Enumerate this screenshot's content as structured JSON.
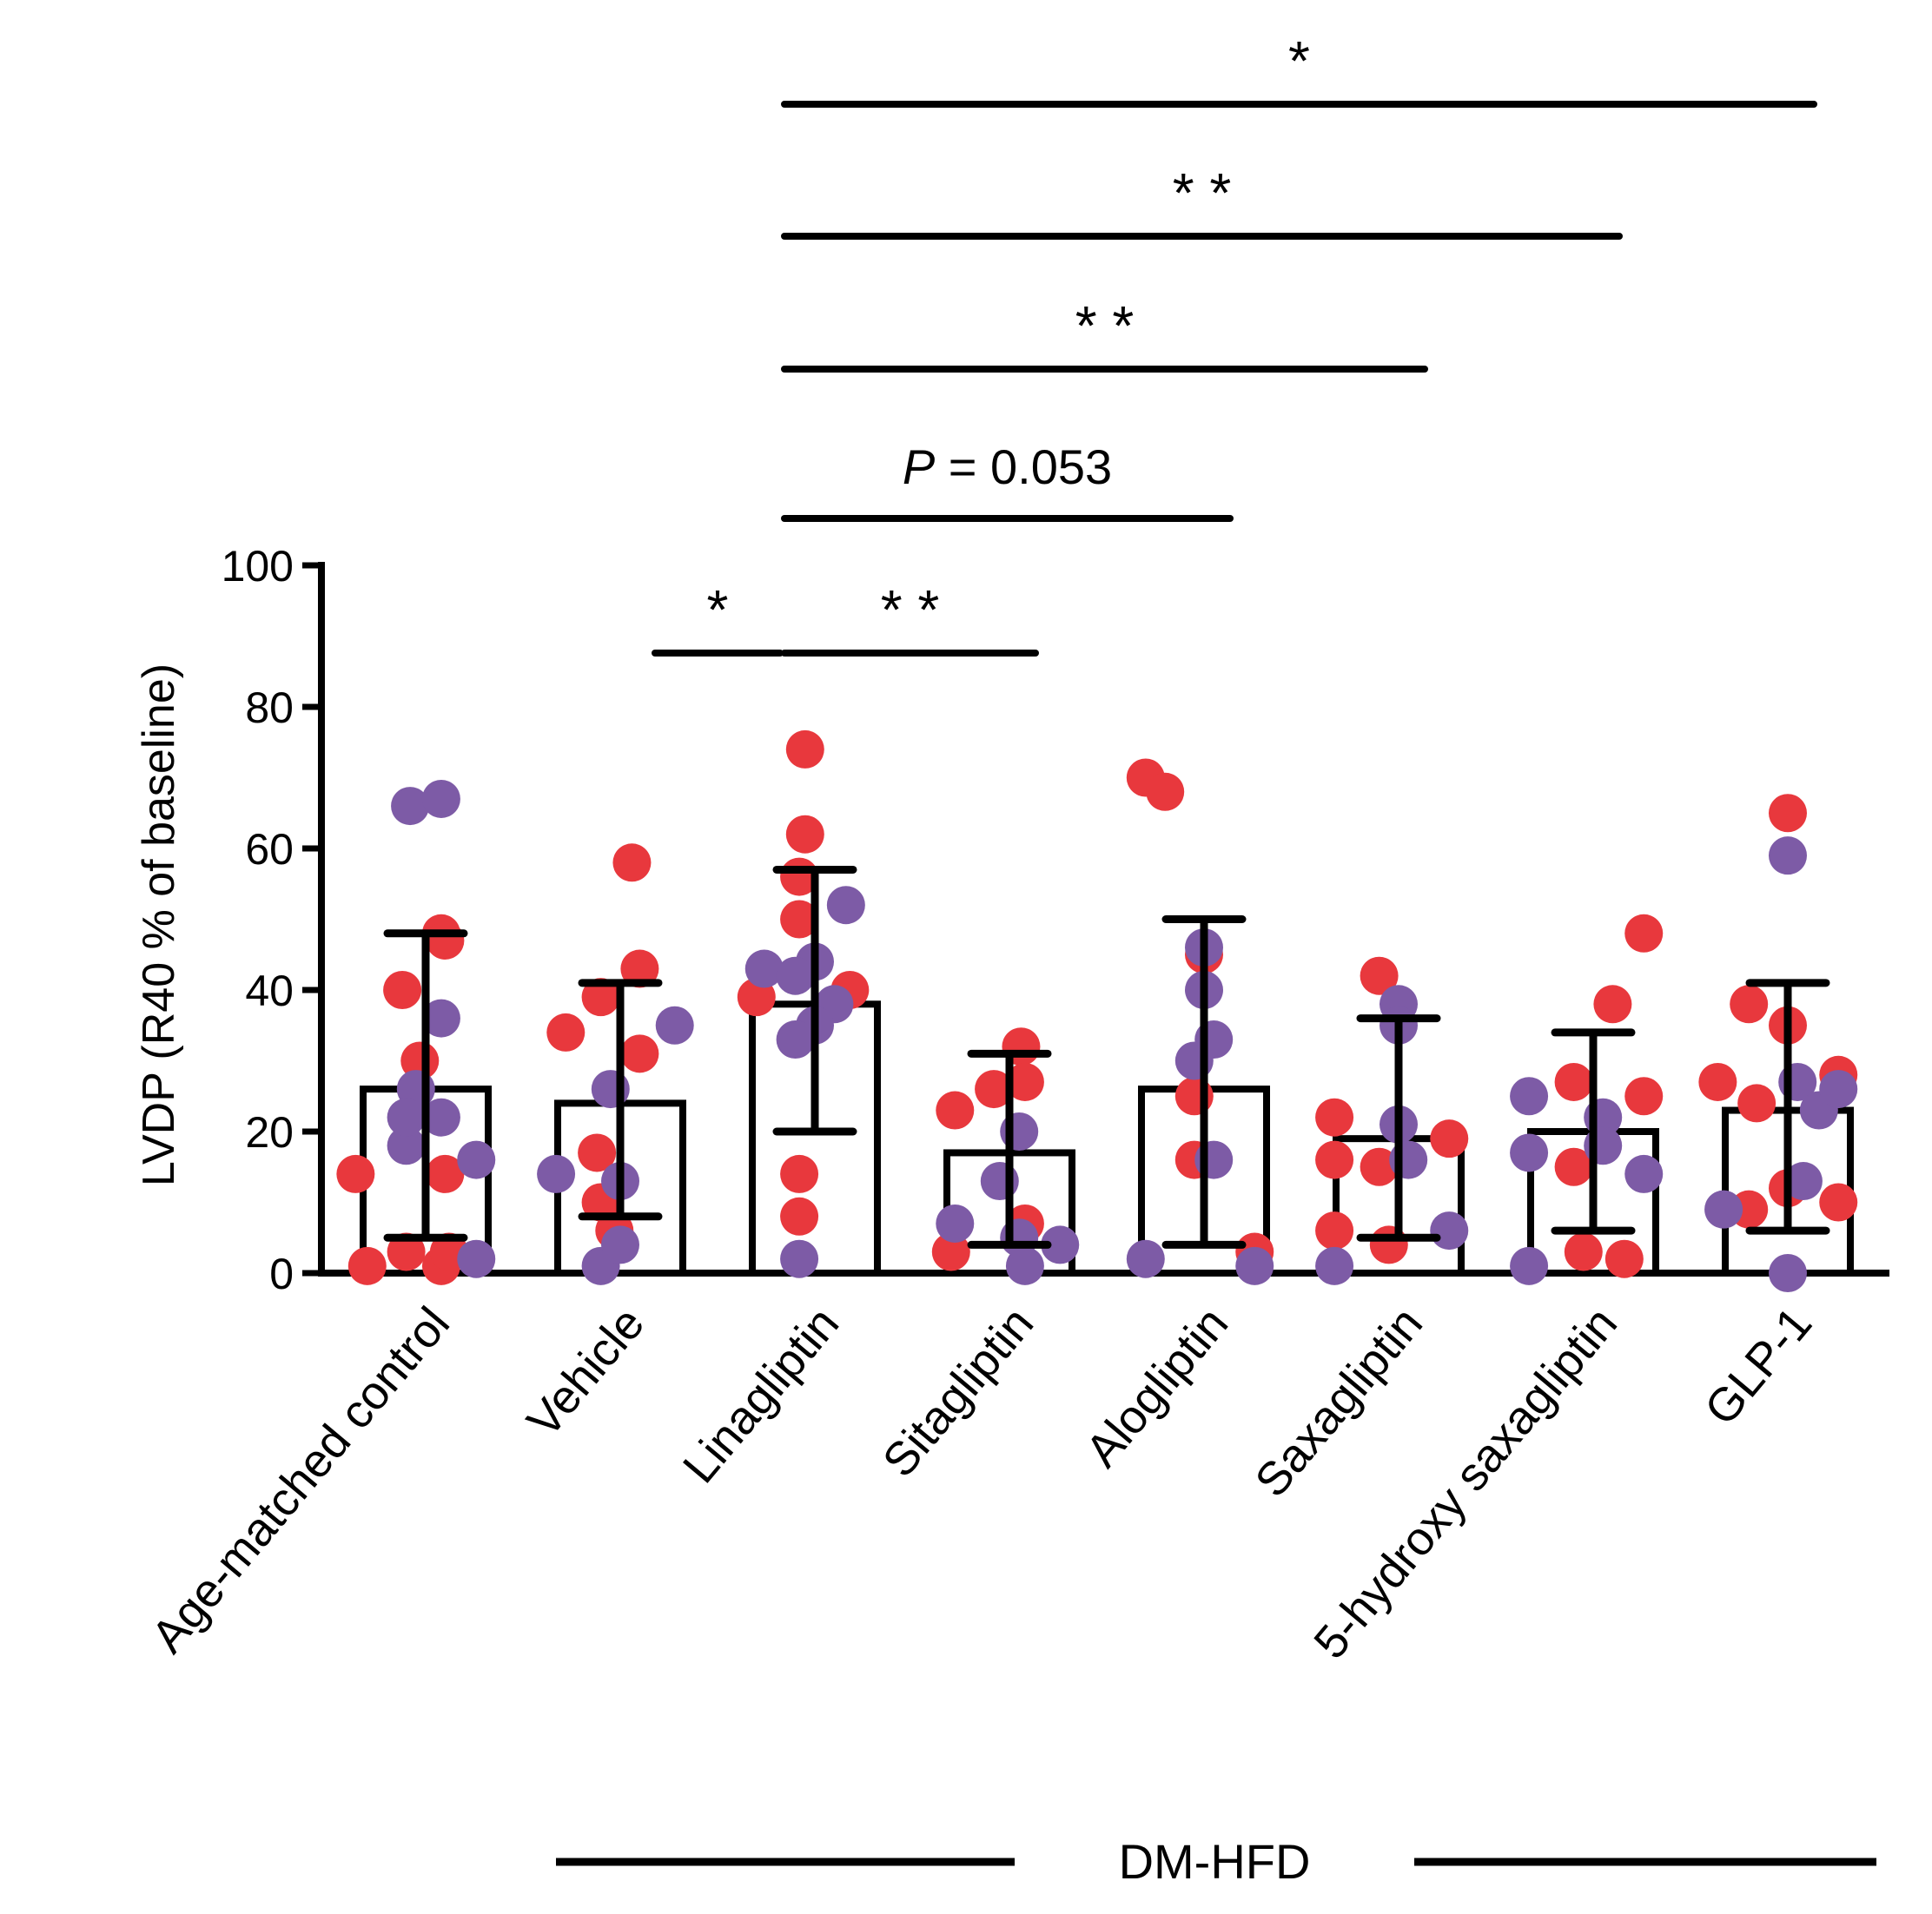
{
  "chart_data": {
    "type": "bar",
    "ylabel": "LVDP (R40 % of baseline)",
    "ylim": [
      0,
      100
    ],
    "yticks": [
      "0",
      "20",
      "40",
      "60",
      "80",
      "100"
    ],
    "categories": [
      "Age-matched control",
      "Vehicle",
      "Linagliptin",
      "Sitagliptin",
      "Alogliptin",
      "Saxagliptin",
      "5-hydroxy saxagliptin",
      "GLP-1"
    ],
    "means": [
      26,
      24,
      38,
      17,
      26,
      19,
      20,
      23
    ],
    "error_low": [
      5,
      8,
      20,
      4,
      4,
      5,
      6,
      6
    ],
    "error_high": [
      48,
      41,
      57,
      31,
      50,
      36,
      34,
      41
    ],
    "series": [
      {
        "name": "red",
        "color": "#e8383d",
        "points": [
          [
            [
              -0.36,
              14
            ],
            [
              -0.3,
              1
            ],
            [
              -0.1,
              3
            ],
            [
              0.08,
              48
            ],
            [
              0.1,
              47
            ],
            [
              -0.12,
              40
            ],
            [
              -0.03,
              30
            ],
            [
              0.1,
              14
            ],
            [
              0.08,
              1
            ],
            [
              0.12,
              3
            ]
          ],
          [
            [
              -0.28,
              34
            ],
            [
              -0.1,
              39
            ],
            [
              0.06,
              58
            ],
            [
              0.1,
              43
            ],
            [
              0.1,
              31
            ],
            [
              -0.12,
              17
            ],
            [
              -0.1,
              10
            ],
            [
              -0.03,
              6
            ]
          ],
          [
            [
              -0.3,
              39
            ],
            [
              -0.05,
              74
            ],
            [
              -0.05,
              62
            ],
            [
              -0.08,
              56
            ],
            [
              -0.08,
              50
            ],
            [
              0.18,
              40
            ],
            [
              -0.08,
              14
            ],
            [
              -0.08,
              8
            ]
          ],
          [
            [
              -0.28,
              23
            ],
            [
              -0.3,
              3
            ],
            [
              -0.08,
              26
            ],
            [
              0.06,
              32
            ],
            [
              0.08,
              27
            ],
            [
              0.08,
              7
            ]
          ],
          [
            [
              -0.3,
              70
            ],
            [
              -0.2,
              68
            ],
            [
              0.0,
              45
            ],
            [
              -0.05,
              25
            ],
            [
              -0.05,
              16
            ],
            [
              0.26,
              3
            ]
          ],
          [
            [
              -0.33,
              22
            ],
            [
              -0.33,
              16
            ],
            [
              -0.33,
              6
            ],
            [
              -0.1,
              42
            ],
            [
              -0.1,
              15
            ],
            [
              0.26,
              19
            ],
            [
              -0.05,
              4
            ]
          ],
          [
            [
              0.26,
              48
            ],
            [
              0.1,
              38
            ],
            [
              -0.1,
              27
            ],
            [
              0.26,
              25
            ],
            [
              -0.1,
              15
            ],
            [
              -0.05,
              3
            ],
            [
              0.16,
              2
            ]
          ],
          [
            [
              -0.36,
              27
            ],
            [
              -0.2,
              38
            ],
            [
              -0.16,
              24
            ],
            [
              0.0,
              35
            ],
            [
              0.26,
              28
            ],
            [
              -0.2,
              9
            ],
            [
              0.0,
              12
            ],
            [
              0.26,
              10
            ],
            [
              0.0,
              65
            ]
          ]
        ]
      },
      {
        "name": "purple",
        "color": "#7d5ba6",
        "points": [
          [
            [
              -0.08,
              66
            ],
            [
              0.08,
              67
            ],
            [
              0.08,
              36
            ],
            [
              -0.05,
              26
            ],
            [
              0.08,
              22
            ],
            [
              -0.1,
              18
            ],
            [
              -0.1,
              22
            ],
            [
              0.26,
              16
            ],
            [
              0.26,
              2
            ]
          ],
          [
            [
              -0.33,
              14
            ],
            [
              0.28,
              35
            ],
            [
              -0.05,
              26
            ],
            [
              0.0,
              13
            ],
            [
              -0.1,
              1
            ],
            [
              0.0,
              4
            ]
          ],
          [
            [
              -0.26,
              43
            ],
            [
              0.16,
              52
            ],
            [
              0.0,
              44
            ],
            [
              -0.1,
              42
            ],
            [
              0.1,
              38
            ],
            [
              0.0,
              35
            ],
            [
              -0.1,
              33
            ],
            [
              -0.08,
              2
            ]
          ],
          [
            [
              -0.28,
              7
            ],
            [
              0.05,
              20
            ],
            [
              -0.05,
              13
            ],
            [
              0.05,
              5
            ],
            [
              0.26,
              4
            ],
            [
              0.08,
              1
            ]
          ],
          [
            [
              -0.3,
              2
            ],
            [
              0.0,
              40
            ],
            [
              0.0,
              46
            ],
            [
              0.05,
              33
            ],
            [
              -0.05,
              30
            ],
            [
              0.05,
              16
            ],
            [
              0.26,
              1
            ]
          ],
          [
            [
              0.0,
              38
            ],
            [
              0.0,
              35
            ],
            [
              0.0,
              21
            ],
            [
              0.05,
              16
            ],
            [
              0.26,
              6
            ],
            [
              -0.33,
              1
            ]
          ],
          [
            [
              -0.33,
              25
            ],
            [
              -0.33,
              17
            ],
            [
              0.05,
              22
            ],
            [
              0.05,
              18
            ],
            [
              0.26,
              14
            ],
            [
              -0.33,
              1
            ]
          ],
          [
            [
              0.0,
              59
            ],
            [
              0.05,
              27
            ],
            [
              0.16,
              23
            ],
            [
              0.26,
              26
            ],
            [
              -0.33,
              9
            ],
            [
              0.08,
              13
            ],
            [
              0.0,
              0
            ]
          ]
        ]
      }
    ],
    "comparisons": [
      {
        "label": "*",
        "from": 1,
        "to": 2,
        "level": "low"
      },
      {
        "label": "**",
        "from": 2,
        "to": 3,
        "level": "low"
      },
      {
        "label": "= 0.053",
        "label_prefix": "P",
        "from": 2,
        "to": 4,
        "level": "p"
      },
      {
        "label": "**",
        "from": 2,
        "to": 5,
        "level": "3"
      },
      {
        "label": "**",
        "from": 2,
        "to": 6,
        "level": "2"
      },
      {
        "label": "*",
        "from": 2,
        "to": 7,
        "level": "1"
      }
    ],
    "group_label": "DM-HFD"
  }
}
